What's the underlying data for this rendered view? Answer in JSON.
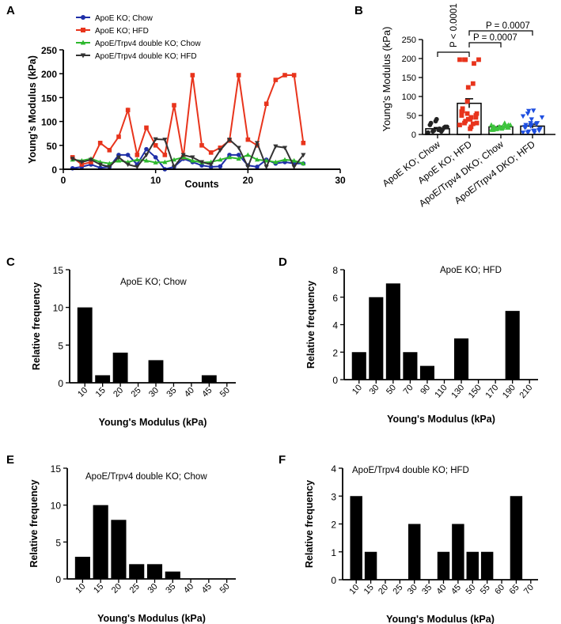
{
  "chart_data": [
    {
      "panel": "A",
      "type": "line",
      "xlabel": "Counts",
      "ylabel": "Young's Modulus (kPa)",
      "xlim": [
        0,
        30
      ],
      "ylim": [
        0,
        250
      ],
      "xticks": [
        0,
        10,
        20,
        30
      ],
      "yticks": [
        0,
        50,
        100,
        150,
        200,
        250
      ],
      "legend_position": "top-left",
      "series": [
        {
          "name": "ApoE KO; Chow",
          "color": "#1f2fa8",
          "marker": "circle",
          "x": [
            1,
            2,
            3,
            4,
            5,
            6,
            7,
            8,
            9,
            10,
            11,
            12,
            13,
            14,
            15,
            16,
            17,
            18,
            19,
            20,
            21,
            22,
            23,
            24,
            25,
            26
          ],
          "y": [
            2,
            5,
            10,
            3,
            5,
            30,
            30,
            10,
            42,
            25,
            0,
            5,
            22,
            15,
            8,
            5,
            6,
            30,
            30,
            8,
            5,
            20,
            12,
            15,
            12,
            12
          ]
        },
        {
          "name": "ApoE KO; HFD",
          "color": "#e8341c",
          "marker": "square",
          "x": [
            1,
            2,
            3,
            4,
            5,
            6,
            7,
            8,
            9,
            10,
            11,
            12,
            13,
            14,
            15,
            16,
            17,
            18,
            19,
            20,
            21,
            22,
            23,
            24,
            25,
            26
          ],
          "y": [
            25,
            10,
            15,
            55,
            40,
            68,
            124,
            30,
            87,
            50,
            30,
            134,
            25,
            197,
            50,
            35,
            45,
            60,
            197,
            62,
            50,
            137,
            187,
            197,
            197,
            55
          ]
        },
        {
          "name": "ApoE/Trpv4 double KO; Chow",
          "color": "#2db82d",
          "marker": "triangle-up",
          "x": [
            1,
            2,
            3,
            4,
            5,
            6,
            7,
            8,
            9,
            10,
            11,
            12,
            13,
            14,
            15,
            16,
            17,
            18,
            19,
            20,
            21,
            22,
            23,
            24,
            25,
            26
          ],
          "y": [
            20,
            18,
            22,
            15,
            12,
            18,
            15,
            20,
            18,
            14,
            15,
            20,
            25,
            18,
            14,
            15,
            20,
            25,
            22,
            30,
            20,
            18,
            15,
            20,
            18,
            12
          ]
        },
        {
          "name": "ApoE/Trpv4 double KO; HFD",
          "color": "#333333",
          "marker": "triangle-down",
          "x": [
            1,
            2,
            3,
            4,
            5,
            6,
            7,
            8,
            9,
            10,
            11,
            12,
            13,
            14,
            15,
            16,
            17,
            18,
            19,
            20,
            21,
            22,
            23,
            24,
            25,
            26
          ],
          "y": [
            22,
            15,
            20,
            10,
            5,
            25,
            10,
            5,
            30,
            63,
            62,
            5,
            30,
            25,
            15,
            10,
            40,
            62,
            45,
            5,
            55,
            5,
            48,
            45,
            5,
            30
          ]
        }
      ],
      "x_axis_range": [
        0,
        30
      ],
      "y_axis_range": [
        0,
        250
      ]
    },
    {
      "panel": "B",
      "type": "scatter-bar",
      "ylabel": "Young's Modulus (kPa)",
      "ylim": [
        0,
        250
      ],
      "yticks": [
        0,
        50,
        100,
        150,
        200,
        250
      ],
      "categories": [
        "ApoE KO; Chow",
        "ApoE KO; HFD",
        "ApoE/Trpv4 DKO; Chow",
        "ApoE/Trpv4 DKO; HFD"
      ],
      "means": [
        15,
        82,
        20,
        22
      ],
      "sems": [
        3,
        12,
        2,
        5
      ],
      "colors": [
        "#222222",
        "#e8341c",
        "#3dc43d",
        "#1f4fe0"
      ],
      "markers": [
        "circle",
        "square",
        "triangle-up",
        "triangle-down"
      ],
      "points": [
        [
          5,
          8,
          10,
          12,
          15,
          18,
          20,
          25,
          30,
          35,
          40,
          8,
          12,
          20
        ],
        [
          25,
          30,
          35,
          40,
          45,
          50,
          55,
          60,
          68,
          87,
          124,
          134,
          187,
          197,
          197,
          197,
          197,
          15,
          20,
          45,
          30,
          50,
          62,
          55,
          40,
          28
        ],
        [
          12,
          14,
          15,
          15,
          18,
          18,
          18,
          20,
          20,
          20,
          20,
          22,
          22,
          25,
          25,
          14,
          15,
          18,
          20,
          22,
          25,
          12,
          15,
          18,
          20,
          30
        ],
        [
          5,
          5,
          8,
          10,
          10,
          12,
          15,
          18,
          20,
          22,
          25,
          28,
          30,
          45,
          48,
          55,
          62,
          63,
          5,
          10,
          15,
          20,
          25,
          30,
          40
        ]
      ],
      "significance": [
        {
          "pair": [
            1,
            2
          ],
          "label": "P < 0.0001"
        },
        {
          "pair": [
            2,
            3
          ],
          "label": "P = 0.0007"
        },
        {
          "pair": [
            2,
            4
          ],
          "label": "P = 0.0007"
        }
      ],
      "y_axis_range": [
        0,
        250
      ]
    },
    {
      "panel": "C",
      "type": "bar",
      "title": "ApoE KO; Chow",
      "xlabel": "Young's Modulus (kPa)",
      "ylabel": "Relative frequency",
      "categories": [
        "10",
        "15",
        "20",
        "25",
        "30",
        "35",
        "40",
        "45",
        "50"
      ],
      "values": [
        10,
        1,
        4,
        0,
        3,
        0,
        0,
        1,
        0
      ],
      "ylim": [
        0,
        15
      ],
      "yticks": [
        0,
        5,
        10,
        15
      ],
      "y_axis_range": [
        0,
        15
      ]
    },
    {
      "panel": "D",
      "type": "bar",
      "title": "ApoE KO; HFD",
      "xlabel": "Young's Modulus (kPa)",
      "ylabel": "Relative frequency",
      "categories": [
        "10",
        "30",
        "50",
        "70",
        "90",
        "110",
        "130",
        "150",
        "170",
        "190",
        "210"
      ],
      "values": [
        2,
        6,
        7,
        2,
        1,
        0,
        3,
        0,
        0,
        5,
        0
      ],
      "ylim": [
        0,
        8
      ],
      "yticks": [
        0,
        2,
        4,
        6,
        8
      ],
      "y_axis_range": [
        0,
        8
      ]
    },
    {
      "panel": "E",
      "type": "bar",
      "title": "ApoE/Trpv4 double KO; Chow",
      "xlabel": "Young's Modulus (kPa)",
      "ylabel": "Relative frequency",
      "categories": [
        "10",
        "15",
        "20",
        "25",
        "30",
        "35",
        "40",
        "45",
        "50"
      ],
      "values": [
        3,
        10,
        8,
        2,
        2,
        1,
        0,
        0,
        0
      ],
      "ylim": [
        0,
        15
      ],
      "yticks": [
        0,
        5,
        10,
        15
      ],
      "y_axis_range": [
        0,
        15
      ]
    },
    {
      "panel": "F",
      "type": "bar",
      "title": "ApoE/Trpv4 double KO; HFD",
      "xlabel": "Young's Modulus (kPa)",
      "ylabel": "Relative frequency",
      "categories": [
        "10",
        "15",
        "20",
        "25",
        "30",
        "35",
        "40",
        "45",
        "50",
        "55",
        "60",
        "65",
        "70"
      ],
      "values": [
        3,
        1,
        0,
        0,
        2,
        0,
        1,
        2,
        1,
        1,
        0,
        3,
        0
      ],
      "ylim": [
        0,
        4
      ],
      "yticks": [
        0,
        1,
        2,
        3,
        4
      ],
      "y_axis_range": [
        0,
        4
      ]
    }
  ]
}
